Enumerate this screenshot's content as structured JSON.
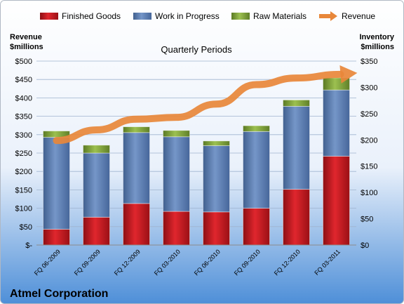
{
  "chart_data": {
    "type": "bar",
    "title": "Quarterly Periods",
    "footer": "Atmel Corporation",
    "y_left_label": [
      "Revenue",
      "$millions"
    ],
    "y_right_label": [
      "Inventory",
      "$millions"
    ],
    "categories": [
      "FQ 06-2009",
      "FQ 09-2009",
      "FQ 12-2009",
      "FQ 03-2010",
      "FQ 06-2010",
      "FQ 09-2010",
      "FQ 12-2010",
      "FQ 03-2011"
    ],
    "y_left_ticks": [
      "$-",
      "$50",
      "$100",
      "$150",
      "$200",
      "$250",
      "$300",
      "$350",
      "$400",
      "$450",
      "$500"
    ],
    "y_right_ticks": [
      "$0",
      "$50",
      "$100",
      "$150",
      "$200",
      "$250",
      "$300",
      "$350"
    ],
    "ylim_right": [
      0,
      350
    ],
    "ylim_left": [
      0,
      500
    ],
    "legend_position": "top",
    "series": [
      {
        "name": "Finished Goods",
        "type": "bar",
        "axis": "right",
        "color": "#C0181F",
        "values": [
          30,
          53,
          79,
          64,
          63,
          70,
          106,
          169
        ]
      },
      {
        "name": "Work in Progress",
        "type": "bar",
        "axis": "right",
        "color": "#5D7FB3",
        "values": [
          175,
          122,
          135,
          142,
          126,
          146,
          158,
          126
        ]
      },
      {
        "name": "Raw Materials",
        "type": "bar",
        "axis": "right",
        "color": "#7FA23C",
        "values": [
          12,
          15,
          11,
          12,
          9,
          11,
          12,
          23
        ]
      },
      {
        "name": "Revenue",
        "type": "line",
        "axis": "left",
        "color": "#E8873A",
        "values": [
          284,
          313,
          342,
          347,
          383,
          436,
          454,
          463
        ]
      }
    ]
  }
}
